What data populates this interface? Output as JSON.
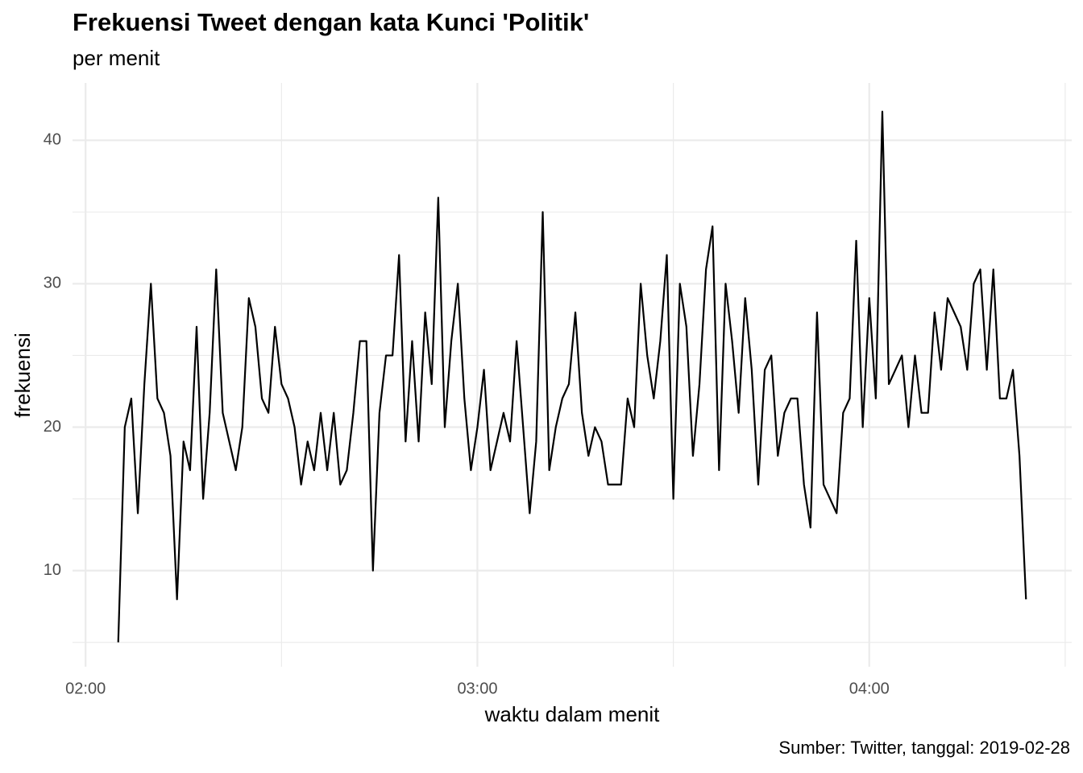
{
  "chart_data": {
    "type": "line",
    "title": "Frekuensi Tweet dengan kata Kunci 'Politik'",
    "subtitle": "per menit",
    "x_label": "waktu dalam menit",
    "y_label": "frekuensi",
    "caption": "Sumber: Twitter, tanggal: 2019-02-28",
    "x": [
      "02:05",
      "02:06",
      "02:07",
      "02:08",
      "02:09",
      "02:10",
      "02:11",
      "02:12",
      "02:13",
      "02:14",
      "02:15",
      "02:16",
      "02:17",
      "02:18",
      "02:19",
      "02:20",
      "02:21",
      "02:22",
      "02:23",
      "02:24",
      "02:25",
      "02:26",
      "02:27",
      "02:28",
      "02:29",
      "02:30",
      "02:31",
      "02:32",
      "02:33",
      "02:34",
      "02:35",
      "02:36",
      "02:37",
      "02:38",
      "02:39",
      "02:40",
      "02:41",
      "02:42",
      "02:43",
      "02:44",
      "02:45",
      "02:46",
      "02:47",
      "02:48",
      "02:49",
      "02:50",
      "02:51",
      "02:52",
      "02:53",
      "02:54",
      "02:55",
      "02:56",
      "02:57",
      "02:58",
      "02:59",
      "03:00",
      "03:01",
      "03:02",
      "03:03",
      "03:04",
      "03:05",
      "03:06",
      "03:07",
      "03:08",
      "03:09",
      "03:10",
      "03:11",
      "03:12",
      "03:13",
      "03:14",
      "03:15",
      "03:16",
      "03:17",
      "03:18",
      "03:19",
      "03:20",
      "03:21",
      "03:22",
      "03:23",
      "03:24",
      "03:25",
      "03:26",
      "03:27",
      "03:28",
      "03:29",
      "03:30",
      "03:31",
      "03:32",
      "03:33",
      "03:34",
      "03:35",
      "03:36",
      "03:37",
      "03:38",
      "03:39",
      "03:40",
      "03:41",
      "03:42",
      "03:43",
      "03:44",
      "03:45",
      "03:46",
      "03:47",
      "03:48",
      "03:49",
      "03:50",
      "03:51",
      "03:52",
      "03:53",
      "03:54",
      "03:55",
      "03:56",
      "03:57",
      "03:58",
      "03:59",
      "04:00",
      "04:01",
      "04:02",
      "04:03",
      "04:04",
      "04:05",
      "04:06",
      "04:07",
      "04:08",
      "04:09",
      "04:10",
      "04:11",
      "04:12",
      "04:13",
      "04:14",
      "04:15",
      "04:16",
      "04:17",
      "04:18",
      "04:19",
      "04:20",
      "04:21",
      "04:22",
      "04:23",
      "04:24"
    ],
    "series": [
      {
        "name": "frekuensi",
        "color": "#000000",
        "values": [
          5,
          20,
          22,
          14,
          23,
          30,
          22,
          21,
          18,
          8,
          19,
          17,
          27,
          15,
          21,
          31,
          21,
          19,
          17,
          20,
          29,
          27,
          22,
          21,
          27,
          23,
          22,
          20,
          16,
          19,
          17,
          21,
          17,
          21,
          16,
          17,
          21,
          26,
          26,
          10,
          21,
          25,
          25,
          32,
          19,
          26,
          19,
          28,
          23,
          36,
          20,
          26,
          30,
          22,
          17,
          20,
          24,
          17,
          19,
          21,
          19,
          26,
          20,
          14,
          19,
          35,
          17,
          20,
          22,
          23,
          28,
          21,
          18,
          20,
          19,
          16,
          16,
          16,
          22,
          20,
          30,
          25,
          22,
          26,
          32,
          15,
          30,
          27,
          18,
          23,
          31,
          34,
          17,
          30,
          26,
          21,
          29,
          24,
          16,
          24,
          25,
          18,
          21,
          22,
          22,
          16,
          13,
          28,
          16,
          15,
          14,
          21,
          22,
          33,
          20,
          29,
          22,
          42,
          23,
          24,
          25,
          20,
          25,
          21,
          21,
          28,
          24,
          29,
          28,
          27,
          24,
          30,
          31,
          24,
          31,
          22,
          22,
          24,
          18,
          8
        ]
      }
    ],
    "xlim": [
      "01:58",
      "04:31"
    ],
    "xticks": [
      "02:00",
      "03:00",
      "04:00"
    ],
    "xminorticks": [
      "02:30",
      "03:30",
      "04:30"
    ],
    "ylim": [
      3.3,
      44
    ],
    "yticks": [
      10,
      20,
      30,
      40
    ],
    "yminorticks": [
      5,
      15,
      25,
      35
    ],
    "grid": true
  }
}
